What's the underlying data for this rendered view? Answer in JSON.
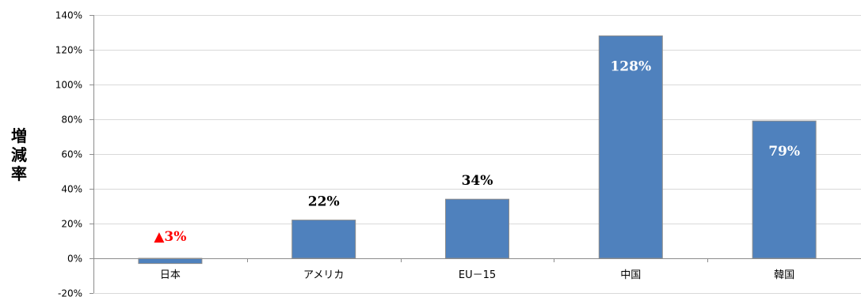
{
  "chart_data": {
    "type": "bar",
    "ylabel": "増減率",
    "categories": [
      "日本",
      "アメリカ",
      "EU－15",
      "中国",
      "韓国"
    ],
    "values": [
      -3,
      22,
      34,
      128,
      79
    ],
    "data_labels": [
      "▲3%",
      "22%",
      "34%",
      "128%",
      "79%"
    ],
    "ylim": [
      -20,
      140
    ],
    "yticks": [
      -20,
      0,
      20,
      40,
      60,
      80,
      100,
      120,
      140
    ],
    "ytick_labels": [
      "-20%",
      "0%",
      "20%",
      "40%",
      "60%",
      "80%",
      "100%",
      "120%",
      "140%"
    ],
    "grid": true,
    "legend": false,
    "colors": {
      "bar_fill": "#4f81bd",
      "bar_stroke": "#8c8c8c",
      "grid": "#d9d9d9",
      "axis": "#8c8c8c",
      "label_default": "#000000",
      "label_inside": "#ffffff",
      "label_negative": "#ff0000"
    }
  }
}
